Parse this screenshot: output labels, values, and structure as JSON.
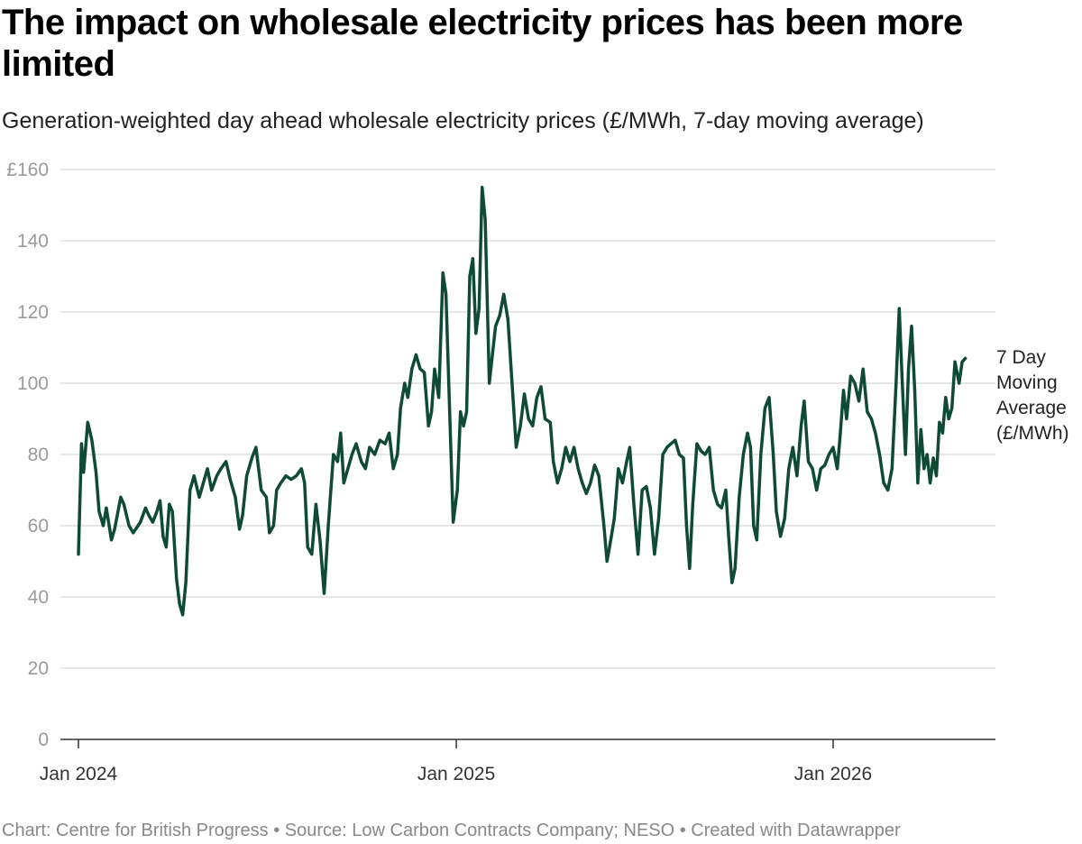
{
  "header": {
    "title": "The impact on wholesale electricity prices has been more limited",
    "subtitle": "Generation-weighted day ahead wholesale electricity prices (£/MWh, 7-day moving average)"
  },
  "footer": {
    "notes": "Chart: Centre for British Progress • Source: Low Carbon Contracts Company; NESO • Created with Datawrapper"
  },
  "chart_data": {
    "type": "line",
    "title": "The impact on wholesale electricity prices has been more limited",
    "subtitle": "Generation-weighted day ahead wholesale electricity prices (£/MWh, 7-day moving average)",
    "ylim": [
      0,
      160
    ],
    "y_ticks": [
      0,
      20,
      40,
      60,
      80,
      100,
      120,
      140,
      160
    ],
    "y_tick_labels": [
      "0",
      "20",
      "40",
      "60",
      "80",
      "100",
      "120",
      "140",
      "£160"
    ],
    "x_ticks": [
      "2024-01-01",
      "2025-01-01",
      "2026-01-01"
    ],
    "x_tick_labels": [
      "Jan 2024",
      "Jan 2025",
      "Jan 2026"
    ],
    "x_range": [
      "2024-01-01",
      "2026-05-01"
    ],
    "grid": "horizontal",
    "line_color": "#0f4a35",
    "series": [
      {
        "name": "7 Day Moving Average (£/MWh)",
        "points": [
          [
            "2024-01-01",
            52
          ],
          [
            "2024-01-04",
            83
          ],
          [
            "2024-01-06",
            75
          ],
          [
            "2024-01-10",
            89
          ],
          [
            "2024-01-14",
            84
          ],
          [
            "2024-01-18",
            75
          ],
          [
            "2024-01-21",
            64
          ],
          [
            "2024-01-25",
            60
          ],
          [
            "2024-01-28",
            65
          ],
          [
            "2024-02-02",
            56
          ],
          [
            "2024-02-05",
            59
          ],
          [
            "2024-02-11",
            68
          ],
          [
            "2024-02-14",
            66
          ],
          [
            "2024-02-19",
            60
          ],
          [
            "2024-02-23",
            58
          ],
          [
            "2024-03-01",
            61
          ],
          [
            "2024-03-06",
            65
          ],
          [
            "2024-03-09",
            63
          ],
          [
            "2024-03-13",
            61
          ],
          [
            "2024-03-17",
            64
          ],
          [
            "2024-03-20",
            67
          ],
          [
            "2024-03-23",
            57
          ],
          [
            "2024-03-26",
            54
          ],
          [
            "2024-03-29",
            66
          ],
          [
            "2024-04-01",
            64
          ],
          [
            "2024-04-05",
            45
          ],
          [
            "2024-04-08",
            38
          ],
          [
            "2024-04-11",
            35
          ],
          [
            "2024-04-14",
            44
          ],
          [
            "2024-04-18",
            70
          ],
          [
            "2024-04-22",
            74
          ],
          [
            "2024-04-27",
            68
          ],
          [
            "2024-05-01",
            72
          ],
          [
            "2024-05-05",
            76
          ],
          [
            "2024-05-09",
            70
          ],
          [
            "2024-05-14",
            74
          ],
          [
            "2024-05-18",
            76
          ],
          [
            "2024-05-23",
            78
          ],
          [
            "2024-05-27",
            73
          ],
          [
            "2024-06-01",
            68
          ],
          [
            "2024-06-05",
            59
          ],
          [
            "2024-06-08",
            63
          ],
          [
            "2024-06-12",
            74
          ],
          [
            "2024-06-17",
            79
          ],
          [
            "2024-06-21",
            82
          ],
          [
            "2024-06-26",
            70
          ],
          [
            "2024-07-01",
            68
          ],
          [
            "2024-07-04",
            58
          ],
          [
            "2024-07-08",
            60
          ],
          [
            "2024-07-11",
            70
          ],
          [
            "2024-07-15",
            72
          ],
          [
            "2024-07-20",
            74
          ],
          [
            "2024-07-25",
            73
          ],
          [
            "2024-07-30",
            74
          ],
          [
            "2024-08-04",
            76
          ],
          [
            "2024-08-07",
            72
          ],
          [
            "2024-08-10",
            54
          ],
          [
            "2024-08-14",
            52
          ],
          [
            "2024-08-18",
            66
          ],
          [
            "2024-08-22",
            56
          ],
          [
            "2024-08-26",
            41
          ],
          [
            "2024-08-30",
            60
          ],
          [
            "2024-09-04",
            80
          ],
          [
            "2024-09-08",
            78
          ],
          [
            "2024-09-11",
            86
          ],
          [
            "2024-09-14",
            72
          ],
          [
            "2024-09-18",
            76
          ],
          [
            "2024-09-22",
            80
          ],
          [
            "2024-09-26",
            83
          ],
          [
            "2024-10-01",
            78
          ],
          [
            "2024-10-05",
            76
          ],
          [
            "2024-10-09",
            82
          ],
          [
            "2024-10-14",
            80
          ],
          [
            "2024-10-19",
            84
          ],
          [
            "2024-10-24",
            83
          ],
          [
            "2024-10-28",
            86
          ],
          [
            "2024-11-01",
            76
          ],
          [
            "2024-11-05",
            80
          ],
          [
            "2024-11-08",
            93
          ],
          [
            "2024-11-12",
            100
          ],
          [
            "2024-11-15",
            96
          ],
          [
            "2024-11-19",
            104
          ],
          [
            "2024-11-23",
            108
          ],
          [
            "2024-11-27",
            104
          ],
          [
            "2024-12-01",
            103
          ],
          [
            "2024-12-05",
            88
          ],
          [
            "2024-12-08",
            92
          ],
          [
            "2024-12-11",
            104
          ],
          [
            "2024-12-15",
            96
          ],
          [
            "2024-12-19",
            131
          ],
          [
            "2024-12-22",
            125
          ],
          [
            "2024-12-26",
            88
          ],
          [
            "2024-12-29",
            61
          ],
          [
            "2025-01-02",
            70
          ],
          [
            "2025-01-05",
            92
          ],
          [
            "2025-01-08",
            88
          ],
          [
            "2025-01-11",
            92
          ],
          [
            "2025-01-14",
            130
          ],
          [
            "2025-01-17",
            135
          ],
          [
            "2025-01-20",
            114
          ],
          [
            "2025-01-23",
            121
          ],
          [
            "2025-01-26",
            155
          ],
          [
            "2025-01-29",
            146
          ],
          [
            "2025-02-02",
            100
          ],
          [
            "2025-02-05",
            108
          ],
          [
            "2025-02-08",
            116
          ],
          [
            "2025-02-12",
            119
          ],
          [
            "2025-02-16",
            125
          ],
          [
            "2025-02-20",
            118
          ],
          [
            "2025-02-24",
            100
          ],
          [
            "2025-02-28",
            82
          ],
          [
            "2025-03-04",
            88
          ],
          [
            "2025-03-08",
            97
          ],
          [
            "2025-03-12",
            90
          ],
          [
            "2025-03-16",
            88
          ],
          [
            "2025-03-20",
            96
          ],
          [
            "2025-03-24",
            99
          ],
          [
            "2025-03-28",
            90
          ],
          [
            "2025-04-02",
            89
          ],
          [
            "2025-04-05",
            78
          ],
          [
            "2025-04-09",
            72
          ],
          [
            "2025-04-13",
            76
          ],
          [
            "2025-04-17",
            82
          ],
          [
            "2025-04-21",
            78
          ],
          [
            "2025-04-25",
            82
          ],
          [
            "2025-04-29",
            76
          ],
          [
            "2025-05-03",
            72
          ],
          [
            "2025-05-07",
            69
          ],
          [
            "2025-05-11",
            72
          ],
          [
            "2025-05-15",
            77
          ],
          [
            "2025-05-19",
            74
          ],
          [
            "2025-05-24",
            60
          ],
          [
            "2025-05-27",
            50
          ],
          [
            "2025-05-30",
            55
          ],
          [
            "2025-06-03",
            62
          ],
          [
            "2025-06-07",
            76
          ],
          [
            "2025-06-11",
            72
          ],
          [
            "2025-06-15",
            78
          ],
          [
            "2025-06-18",
            82
          ],
          [
            "2025-06-22",
            66
          ],
          [
            "2025-06-26",
            52
          ],
          [
            "2025-06-30",
            70
          ],
          [
            "2025-07-04",
            71
          ],
          [
            "2025-07-08",
            65
          ],
          [
            "2025-07-12",
            52
          ],
          [
            "2025-07-16",
            62
          ],
          [
            "2025-07-20",
            80
          ],
          [
            "2025-07-24",
            82
          ],
          [
            "2025-07-28",
            83
          ],
          [
            "2025-08-01",
            84
          ],
          [
            "2025-08-05",
            80
          ],
          [
            "2025-08-09",
            79
          ],
          [
            "2025-08-12",
            60
          ],
          [
            "2025-08-15",
            48
          ],
          [
            "2025-08-18",
            66
          ],
          [
            "2025-08-22",
            83
          ],
          [
            "2025-08-26",
            81
          ],
          [
            "2025-08-30",
            80
          ],
          [
            "2025-09-03",
            82
          ],
          [
            "2025-09-07",
            70
          ],
          [
            "2025-09-11",
            66
          ],
          [
            "2025-09-15",
            65
          ],
          [
            "2025-09-19",
            70
          ],
          [
            "2025-09-22",
            56
          ],
          [
            "2025-09-25",
            44
          ],
          [
            "2025-09-28",
            48
          ],
          [
            "2025-10-02",
            68
          ],
          [
            "2025-10-06",
            80
          ],
          [
            "2025-10-10",
            86
          ],
          [
            "2025-10-13",
            82
          ],
          [
            "2025-10-16",
            60
          ],
          [
            "2025-10-19",
            56
          ],
          [
            "2025-10-23",
            80
          ],
          [
            "2025-10-27",
            93
          ],
          [
            "2025-10-31",
            96
          ],
          [
            "2025-11-04",
            80
          ],
          [
            "2025-11-07",
            64
          ],
          [
            "2025-11-11",
            57
          ],
          [
            "2025-11-15",
            62
          ],
          [
            "2025-11-19",
            76
          ],
          [
            "2025-11-23",
            82
          ],
          [
            "2025-11-27",
            74
          ],
          [
            "2025-12-01",
            88
          ],
          [
            "2025-12-04",
            95
          ],
          [
            "2025-12-08",
            78
          ],
          [
            "2025-12-12",
            76
          ],
          [
            "2025-12-16",
            70
          ],
          [
            "2025-12-20",
            76
          ],
          [
            "2025-12-24",
            77
          ],
          [
            "2025-12-28",
            80
          ],
          [
            "2026-01-01",
            82
          ],
          [
            "2026-01-05",
            76
          ],
          [
            "2026-01-08",
            86
          ],
          [
            "2026-01-11",
            98
          ],
          [
            "2026-01-14",
            90
          ],
          [
            "2026-01-18",
            102
          ],
          [
            "2026-01-22",
            100
          ],
          [
            "2026-01-26",
            95
          ],
          [
            "2026-01-30",
            104
          ],
          [
            "2026-02-03",
            92
          ],
          [
            "2026-02-07",
            90
          ],
          [
            "2026-02-11",
            86
          ],
          [
            "2026-02-15",
            80
          ],
          [
            "2026-02-19",
            72
          ],
          [
            "2026-02-23",
            70
          ],
          [
            "2026-02-27",
            76
          ],
          [
            "2026-03-03",
            100
          ],
          [
            "2026-03-06",
            121
          ],
          [
            "2026-03-09",
            100
          ],
          [
            "2026-03-12",
            80
          ],
          [
            "2026-03-15",
            104
          ],
          [
            "2026-03-18",
            116
          ],
          [
            "2026-03-21",
            98
          ],
          [
            "2026-03-24",
            72
          ],
          [
            "2026-03-27",
            87
          ],
          [
            "2026-03-30",
            76
          ],
          [
            "2026-04-02",
            80
          ],
          [
            "2026-04-05",
            72
          ],
          [
            "2026-04-08",
            79
          ],
          [
            "2026-04-11",
            74
          ],
          [
            "2026-04-14",
            89
          ],
          [
            "2026-04-17",
            86
          ],
          [
            "2026-04-20",
            96
          ],
          [
            "2026-04-23",
            90
          ],
          [
            "2026-04-26",
            93
          ],
          [
            "2026-04-29",
            106
          ],
          [
            "2026-05-03",
            100
          ],
          [
            "2026-05-06",
            106
          ],
          [
            "2026-05-09",
            107
          ]
        ]
      }
    ],
    "series_label": [
      "7 Day",
      "Moving",
      "Average",
      "(£/MWh)"
    ]
  }
}
